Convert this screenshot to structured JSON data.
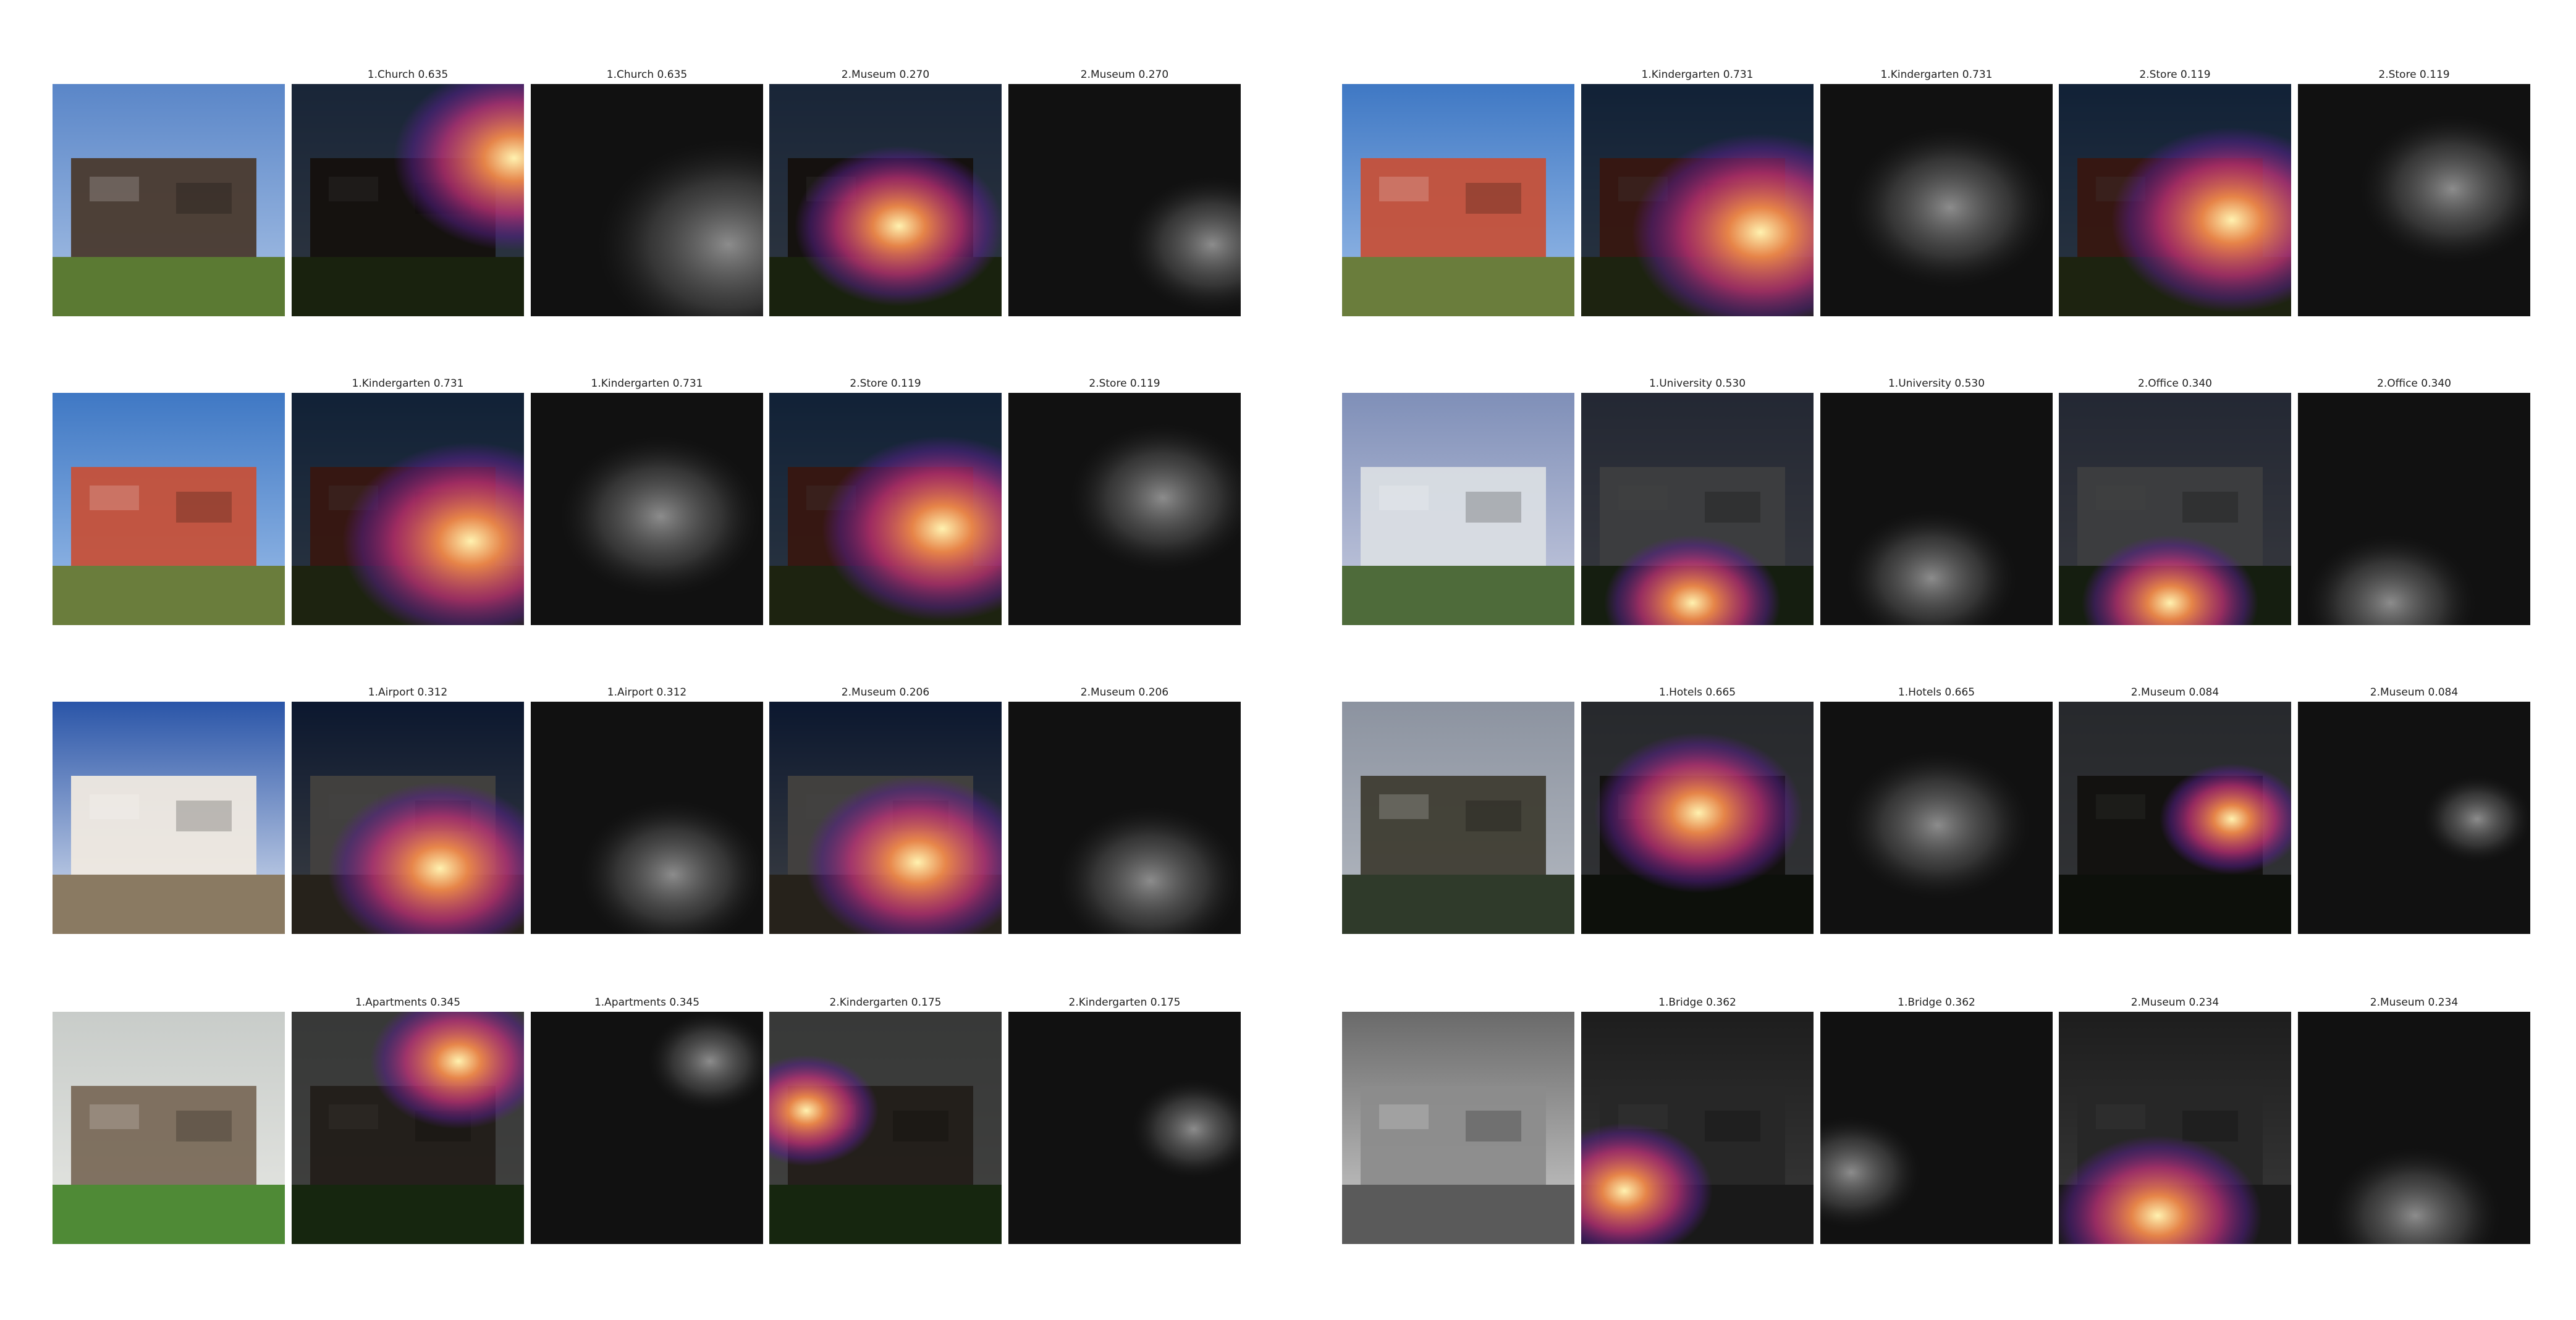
{
  "colors": {
    "background": "#ffffff",
    "caption_text": "#222222",
    "heat_hot": "#fff2b0",
    "heat_warm": "#f08a4b",
    "heat_mid": "#c1327a",
    "heat_cool": "#5a1f8f"
  },
  "panels": [
    {
      "original_icon": "museum-photo-icon",
      "captions": [
        "1.Church 0.635",
        "1.Church 0.635",
        "2.Museum 0.270",
        "2.Museum 0.270"
      ]
    },
    {
      "original_icon": "container-kindergarten-photo-icon",
      "captions": [
        "1.Kindergarten 0.731",
        "1.Kindergarten 0.731",
        "2.Store 0.119",
        "2.Store 0.119"
      ]
    },
    {
      "original_icon": "container-kindergarten-photo-icon",
      "captions": [
        "1.Kindergarten 0.731",
        "1.Kindergarten 0.731",
        "2.Store 0.119",
        "2.Store 0.119"
      ]
    },
    {
      "original_icon": "aerial-campus-photo-icon",
      "captions": [
        "1.University 0.530",
        "1.University 0.530",
        "2.Office 0.340",
        "2.Office 0.340"
      ]
    },
    {
      "original_icon": "tent-roof-building-photo-icon",
      "captions": [
        "1.Airport 0.312",
        "1.Airport 0.312",
        "2.Museum 0.206",
        "2.Museum 0.206"
      ]
    },
    {
      "original_icon": "forest-house-photo-icon",
      "captions": [
        "1.Hotels 0.665",
        "1.Hotels 0.665",
        "2.Museum 0.084",
        "2.Museum 0.084"
      ]
    },
    {
      "original_icon": "pavilion-apartments-photo-icon",
      "captions": [
        "1.Apartments 0.345",
        "1.Apartments 0.345",
        "2.Kindergarten 0.175",
        "2.Kindergarten 0.175"
      ]
    },
    {
      "original_icon": "city-riverside-photo-icon",
      "captions": [
        "1.Bridge 0.362",
        "1.Bridge 0.362",
        "2.Museum 0.234",
        "2.Museum 0.234"
      ]
    }
  ]
}
